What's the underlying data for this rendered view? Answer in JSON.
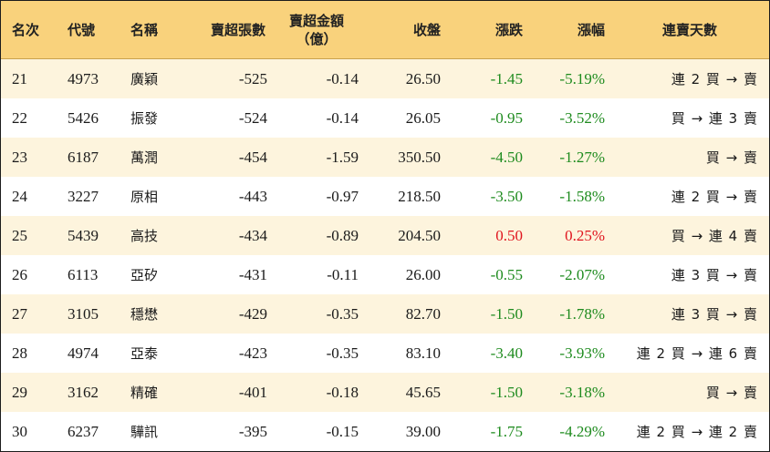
{
  "headers": {
    "rank": "名次",
    "code": "代號",
    "name": "名稱",
    "oversold_lots": "賣超張數",
    "oversold_amount_line1": "賣超金額",
    "oversold_amount_line2": "（億）",
    "close": "收盤",
    "change": "漲跌",
    "change_pct": "漲幅",
    "streak": "連賣天數"
  },
  "colors": {
    "header_bg": "#f9d27c",
    "stripe_bg": "#fdf4dd",
    "down": "#1e8b1e",
    "up": "#e0141e"
  },
  "rows": [
    {
      "rank": "21",
      "code": "4973",
      "name": "廣穎",
      "lots": "-525",
      "amount": "-0.14",
      "close": "26.50",
      "change": "-1.45",
      "pct": "-5.19%",
      "streak": "連 2 買 → 賣",
      "dir": "down"
    },
    {
      "rank": "22",
      "code": "5426",
      "name": "振發",
      "lots": "-524",
      "amount": "-0.14",
      "close": "26.05",
      "change": "-0.95",
      "pct": "-3.52%",
      "streak": "買 → 連 3 賣",
      "dir": "down"
    },
    {
      "rank": "23",
      "code": "6187",
      "name": "萬潤",
      "lots": "-454",
      "amount": "-1.59",
      "close": "350.50",
      "change": "-4.50",
      "pct": "-1.27%",
      "streak": "買 → 賣",
      "dir": "down"
    },
    {
      "rank": "24",
      "code": "3227",
      "name": "原相",
      "lots": "-443",
      "amount": "-0.97",
      "close": "218.50",
      "change": "-3.50",
      "pct": "-1.58%",
      "streak": "連 2 買 → 賣",
      "dir": "down"
    },
    {
      "rank": "25",
      "code": "5439",
      "name": "高技",
      "lots": "-434",
      "amount": "-0.89",
      "close": "204.50",
      "change": "0.50",
      "pct": "0.25%",
      "streak": "買 → 連 4 賣",
      "dir": "up"
    },
    {
      "rank": "26",
      "code": "6113",
      "name": "亞矽",
      "lots": "-431",
      "amount": "-0.11",
      "close": "26.00",
      "change": "-0.55",
      "pct": "-2.07%",
      "streak": "連 3 買 → 賣",
      "dir": "down"
    },
    {
      "rank": "27",
      "code": "3105",
      "name": "穩懋",
      "lots": "-429",
      "amount": "-0.35",
      "close": "82.70",
      "change": "-1.50",
      "pct": "-1.78%",
      "streak": "連 3 買 → 賣",
      "dir": "down"
    },
    {
      "rank": "28",
      "code": "4974",
      "name": "亞泰",
      "lots": "-423",
      "amount": "-0.35",
      "close": "83.10",
      "change": "-3.40",
      "pct": "-3.93%",
      "streak": "連 2 買 → 連 6 賣",
      "dir": "down"
    },
    {
      "rank": "29",
      "code": "3162",
      "name": "精確",
      "lots": "-401",
      "amount": "-0.18",
      "close": "45.65",
      "change": "-1.50",
      "pct": "-3.18%",
      "streak": "買 → 賣",
      "dir": "down"
    },
    {
      "rank": "30",
      "code": "6237",
      "name": "驊訊",
      "lots": "-395",
      "amount": "-0.15",
      "close": "39.00",
      "change": "-1.75",
      "pct": "-4.29%",
      "streak": "連 2 買 → 連 2 賣",
      "dir": "down"
    }
  ]
}
